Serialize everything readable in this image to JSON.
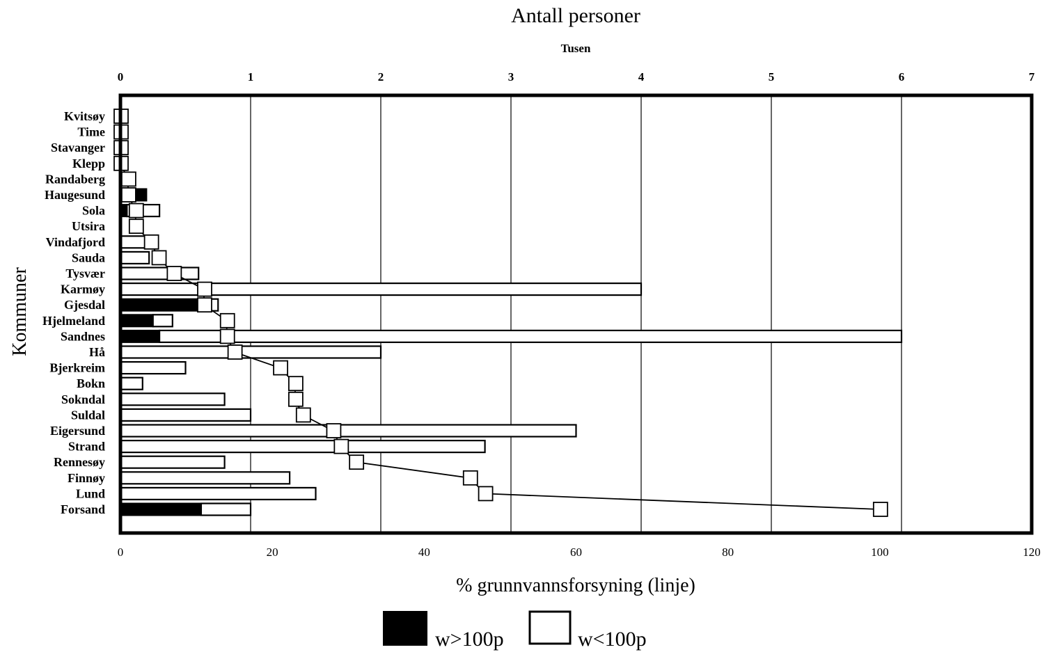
{
  "chart_data": {
    "type": "bar",
    "top_title": "Antall personer",
    "top_subtitle": "Tusen",
    "top_axis": {
      "range": [
        0,
        7
      ],
      "ticks": [
        "0",
        "1",
        "2",
        "3",
        "4",
        "5",
        "6",
        "7"
      ]
    },
    "bottom_axis": {
      "range": [
        0,
        120
      ],
      "ticks": [
        "0",
        "20",
        "40",
        "60",
        "80",
        "100",
        "120"
      ]
    },
    "xlabel": "% grunnvannsforsyning (linje)",
    "ylabel": "Kommuner",
    "grid": "vertical",
    "legend_position": "bottom-center",
    "colors": {
      "w_gt_100p": "#000000",
      "w_lt_100p": "#ffffff",
      "line": "#000000"
    },
    "categories": [
      "Kvitsøy",
      "Time",
      "Stavanger",
      "Klepp",
      "Randaberg",
      "Haugesund",
      "Sola",
      "Utsira",
      "Vindafjord",
      "Sauda",
      "Tysvær",
      "Karmøy",
      "Gjesdal",
      "Hjelmeland",
      "Sandnes",
      "Hå",
      "Bjerkreim",
      "Bokn",
      "Sokndal",
      "Suldal",
      "Eigersund",
      "Strand",
      "Rennesøy",
      "Finnøy",
      "Lund",
      "Forsand"
    ],
    "series": [
      {
        "name": "w>100p",
        "axis": "top",
        "unit": "Tusen personer",
        "values": [
          0,
          0,
          0,
          0,
          0,
          0.2,
          0.05,
          0,
          0,
          0,
          0,
          0,
          0.6,
          0.25,
          0.3,
          0,
          0,
          0,
          0,
          0,
          0,
          0,
          0,
          0,
          0,
          0.62
        ]
      },
      {
        "name": "w<100p",
        "axis": "top",
        "unit": "Tusen personer",
        "values": [
          0,
          0,
          0,
          0,
          0,
          0.0,
          0.25,
          0,
          0.28,
          0.22,
          0.6,
          4.0,
          0.15,
          0.15,
          5.7,
          2.0,
          0.5,
          0.17,
          0.8,
          1.0,
          3.5,
          2.8,
          0.8,
          1.3,
          1.5,
          0.38
        ]
      },
      {
        "name": "% grunnvannsforsyning",
        "axis": "bottom",
        "type": "line",
        "values": [
          0,
          0,
          0,
          0,
          1,
          1,
          2,
          2,
          4,
          5,
          7,
          11,
          11,
          14,
          14,
          15,
          21,
          23,
          23,
          24,
          28,
          29,
          31,
          46,
          48,
          100
        ]
      }
    ]
  }
}
